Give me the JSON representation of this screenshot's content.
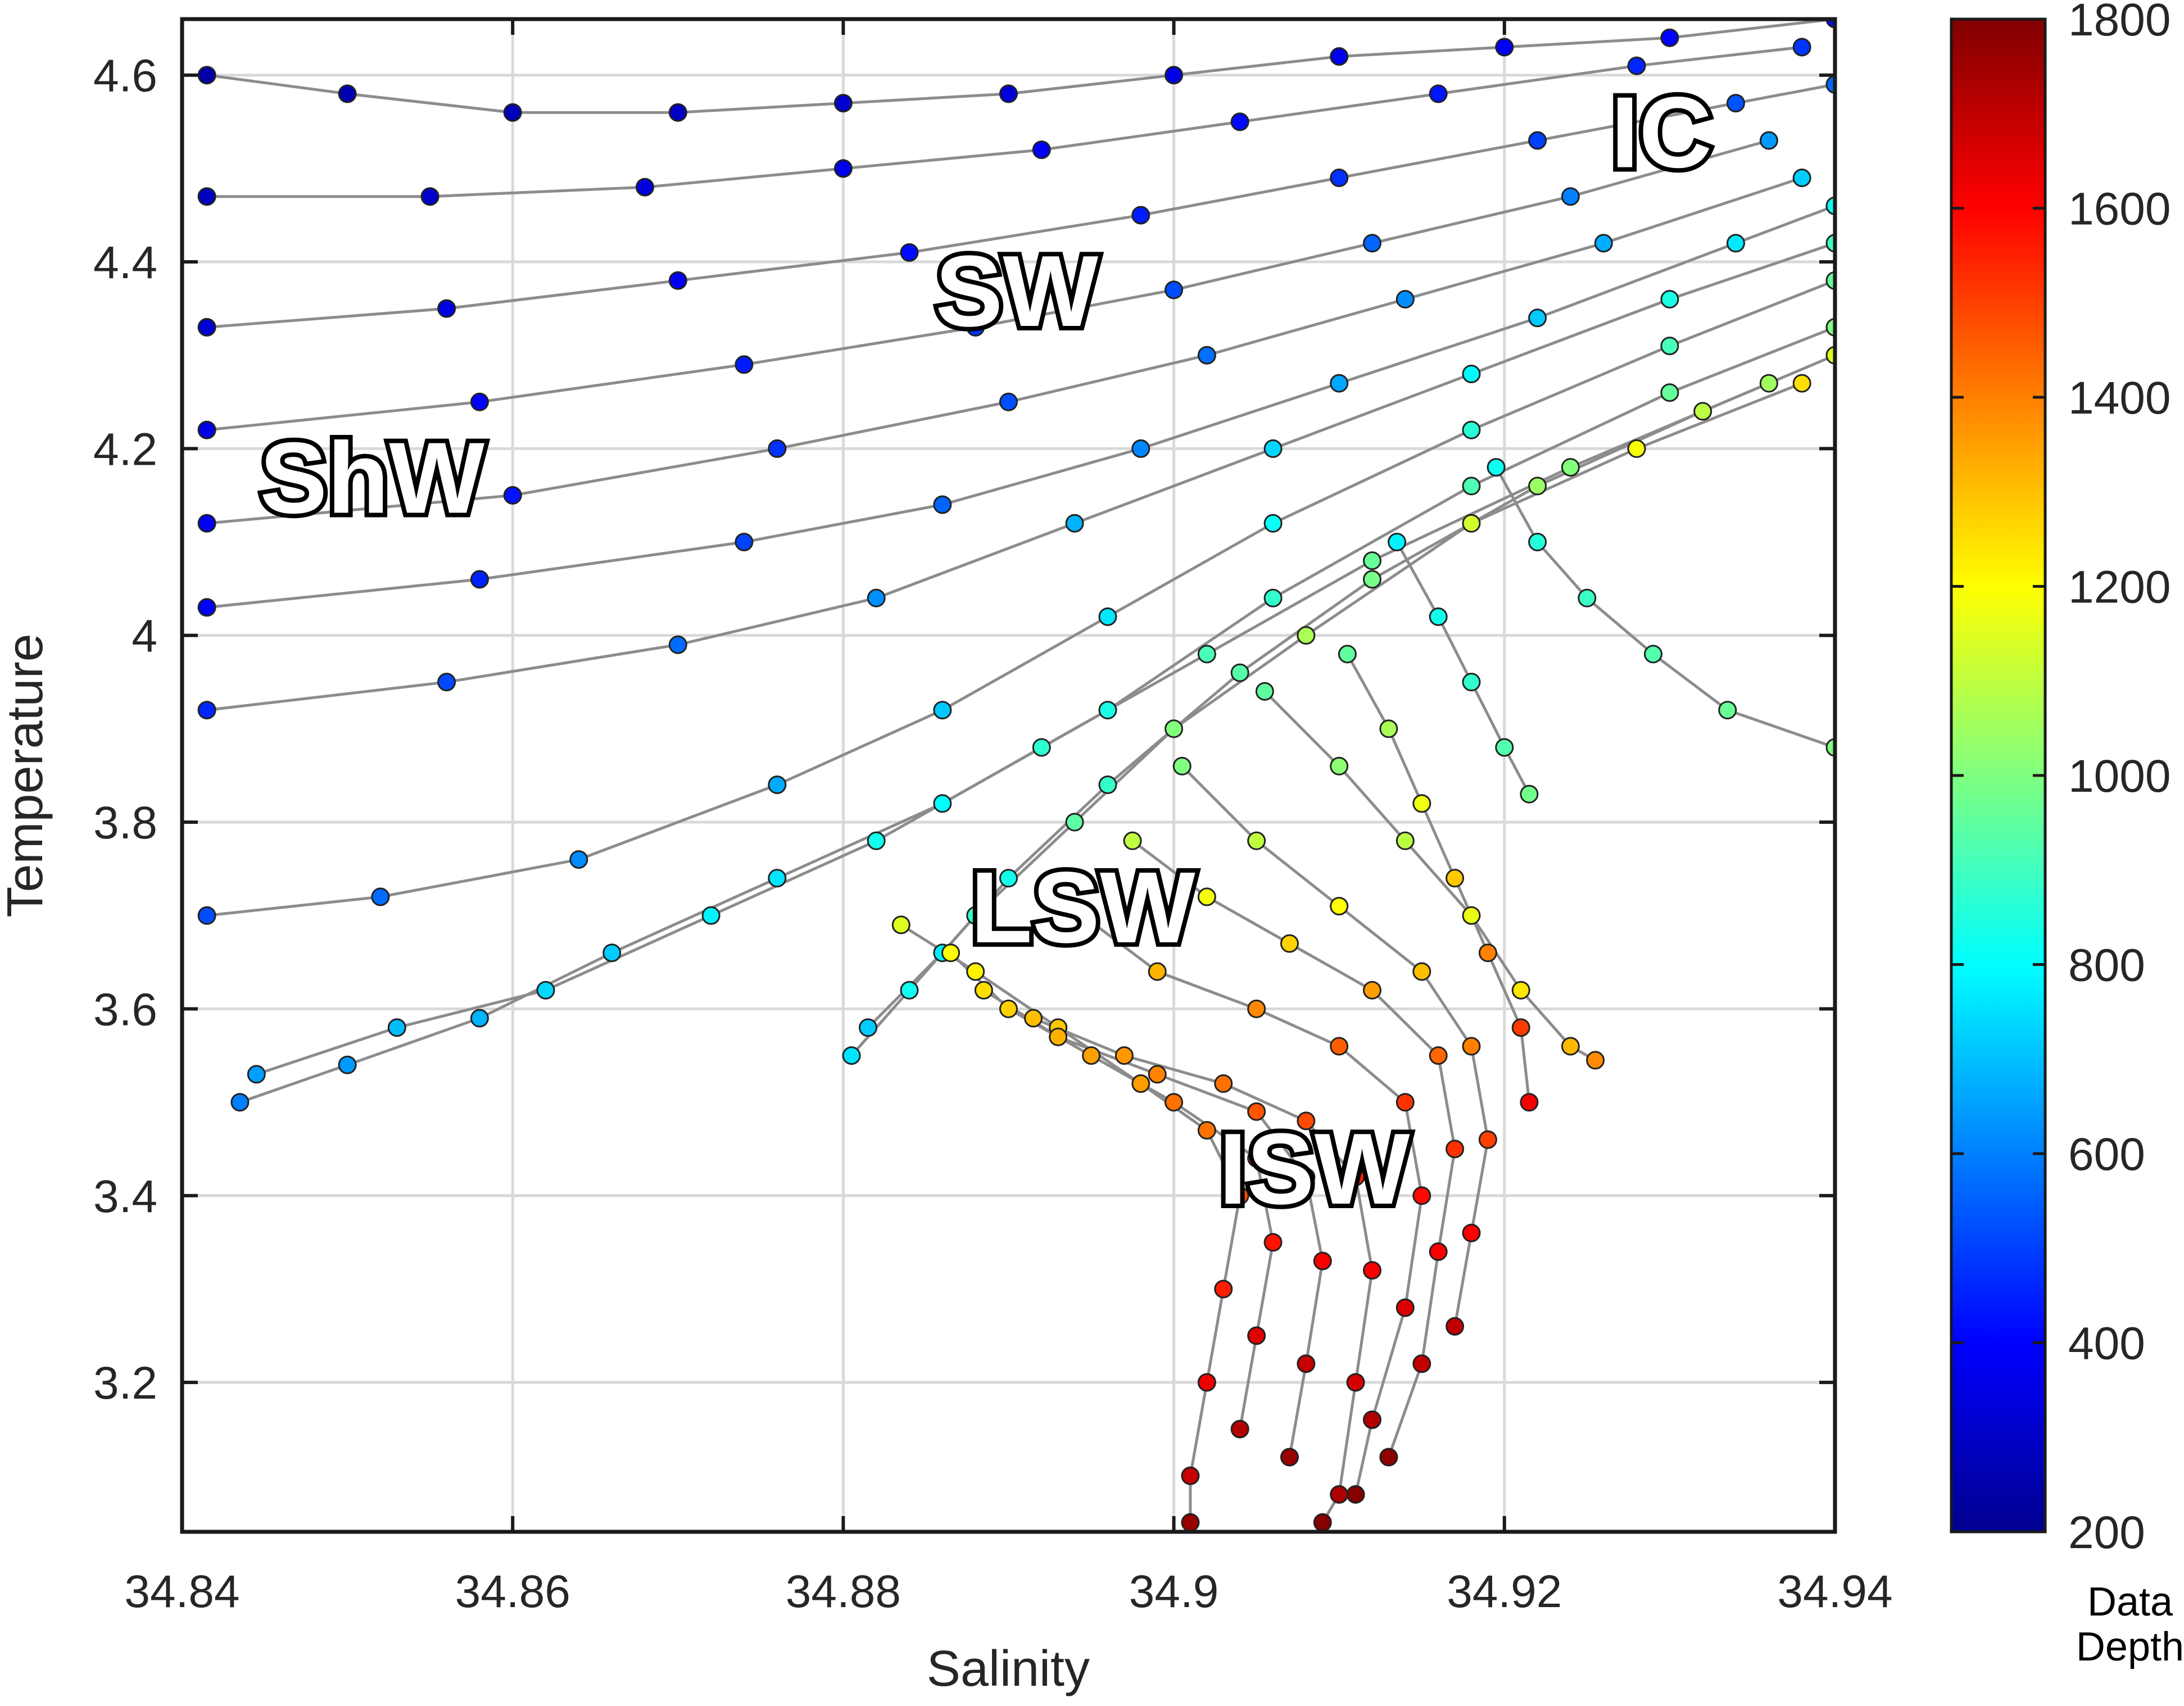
{
  "chart_data": {
    "type": "scatter",
    "xlabel": "Salinity",
    "ylabel": "Temperature",
    "xlim": [
      34.84,
      34.94
    ],
    "ylim": [
      3.04,
      4.66
    ],
    "x_ticks": [
      "34.84",
      "34.86",
      "34.88",
      "34.9",
      "34.92",
      "34.94"
    ],
    "y_ticks": [
      "3.2",
      "3.4",
      "3.6",
      "3.8",
      "4",
      "4.2",
      "4.4",
      "4.6"
    ],
    "grid": true,
    "colorbar": {
      "label_line1": "Data",
      "label_line2": "Depth",
      "range": [
        200,
        1800
      ],
      "ticks": [
        "200",
        "400",
        "600",
        "800",
        "1000",
        "1200",
        "1400",
        "1600",
        "1800"
      ],
      "colormap": "jet"
    },
    "annotations": [
      {
        "text": "IC",
        "x": 34.9295,
        "y": 4.53
      },
      {
        "text": "SW",
        "x": 34.8905,
        "y": 4.36
      },
      {
        "text": "ShW",
        "x": 34.8515,
        "y": 4.16
      },
      {
        "text": "LSW",
        "x": 34.8945,
        "y": 3.7
      },
      {
        "text": "ISW",
        "x": 34.9085,
        "y": 3.42
      }
    ],
    "profile_paths": [
      {
        "points": [
          [
            34.8415,
            4.6
          ],
          [
            34.85,
            4.58
          ],
          [
            34.86,
            4.56
          ],
          [
            34.87,
            4.56
          ],
          [
            34.88,
            4.57
          ],
          [
            34.89,
            4.58
          ],
          [
            34.9,
            4.6
          ],
          [
            34.91,
            4.62
          ],
          [
            34.92,
            4.63
          ],
          [
            34.93,
            4.64
          ],
          [
            34.94,
            4.66
          ]
        ],
        "depth_range": [
          260,
          420
        ]
      },
      {
        "points": [
          [
            34.8415,
            4.47
          ],
          [
            34.855,
            4.47
          ],
          [
            34.868,
            4.48
          ],
          [
            34.88,
            4.5
          ],
          [
            34.892,
            4.52
          ],
          [
            34.904,
            4.55
          ],
          [
            34.916,
            4.58
          ],
          [
            34.928,
            4.61
          ],
          [
            34.938,
            4.63
          ]
        ],
        "depth_range": [
          300,
          480
        ]
      },
      {
        "points": [
          [
            34.8415,
            4.33
          ],
          [
            34.856,
            4.35
          ],
          [
            34.87,
            4.38
          ],
          [
            34.884,
            4.41
          ],
          [
            34.898,
            4.45
          ],
          [
            34.91,
            4.49
          ],
          [
            34.922,
            4.53
          ],
          [
            34.934,
            4.57
          ],
          [
            34.94,
            4.59
          ]
        ],
        "depth_range": [
          330,
          560
        ]
      },
      {
        "points": [
          [
            34.8415,
            4.22
          ],
          [
            34.858,
            4.25
          ],
          [
            34.874,
            4.29
          ],
          [
            34.888,
            4.33
          ],
          [
            34.9,
            4.37
          ],
          [
            34.912,
            4.42
          ],
          [
            34.924,
            4.47
          ],
          [
            34.936,
            4.53
          ]
        ],
        "depth_range": [
          360,
          640
        ]
      },
      {
        "points": [
          [
            34.8415,
            4.12
          ],
          [
            34.86,
            4.15
          ],
          [
            34.876,
            4.2
          ],
          [
            34.89,
            4.25
          ],
          [
            34.902,
            4.3
          ],
          [
            34.914,
            4.36
          ],
          [
            34.926,
            4.42
          ],
          [
            34.938,
            4.49
          ]
        ],
        "depth_range": [
          380,
          720
        ]
      },
      {
        "points": [
          [
            34.8415,
            4.03
          ],
          [
            34.858,
            4.06
          ],
          [
            34.874,
            4.1
          ],
          [
            34.886,
            4.14
          ],
          [
            34.898,
            4.2
          ],
          [
            34.91,
            4.27
          ],
          [
            34.922,
            4.34
          ],
          [
            34.934,
            4.42
          ],
          [
            34.94,
            4.46
          ]
        ],
        "depth_range": [
          400,
          820
        ]
      },
      {
        "points": [
          [
            34.8415,
            3.92
          ],
          [
            34.856,
            3.95
          ],
          [
            34.87,
            3.99
          ],
          [
            34.882,
            4.04
          ],
          [
            34.894,
            4.12
          ],
          [
            34.906,
            4.2
          ],
          [
            34.918,
            4.28
          ],
          [
            34.93,
            4.36
          ],
          [
            34.94,
            4.42
          ]
        ],
        "depth_range": [
          460,
          900
        ]
      },
      {
        "points": [
          [
            34.8415,
            3.7
          ],
          [
            34.852,
            3.72
          ],
          [
            34.864,
            3.76
          ],
          [
            34.876,
            3.84
          ],
          [
            34.886,
            3.92
          ],
          [
            34.896,
            4.02
          ],
          [
            34.906,
            4.12
          ],
          [
            34.918,
            4.22
          ],
          [
            34.93,
            4.31
          ],
          [
            34.94,
            4.38
          ]
        ],
        "depth_range": [
          520,
          960
        ]
      },
      {
        "points": [
          [
            34.8435,
            3.5
          ],
          [
            34.85,
            3.54
          ],
          [
            34.858,
            3.59
          ],
          [
            34.866,
            3.66
          ],
          [
            34.876,
            3.74
          ],
          [
            34.886,
            3.82
          ],
          [
            34.896,
            3.92
          ],
          [
            34.906,
            4.04
          ],
          [
            34.918,
            4.16
          ],
          [
            34.93,
            4.26
          ],
          [
            34.94,
            4.33
          ]
        ],
        "depth_range": [
          600,
          1000
        ]
      },
      {
        "points": [
          [
            34.8445,
            3.53
          ],
          [
            34.853,
            3.58
          ],
          [
            34.862,
            3.62
          ],
          [
            34.872,
            3.7
          ],
          [
            34.882,
            3.78
          ],
          [
            34.892,
            3.88
          ],
          [
            34.902,
            3.98
          ],
          [
            34.912,
            4.08
          ],
          [
            34.924,
            4.18
          ],
          [
            34.936,
            4.27
          ]
        ],
        "depth_range": [
          650,
          1050
        ]
      },
      {
        "points": [
          [
            34.8815,
            3.58
          ],
          [
            34.886,
            3.66
          ],
          [
            34.89,
            3.74
          ],
          [
            34.896,
            3.84
          ],
          [
            34.904,
            3.96
          ],
          [
            34.912,
            4.06
          ],
          [
            34.922,
            4.16
          ],
          [
            34.932,
            4.24
          ],
          [
            34.94,
            4.3
          ]
        ],
        "depth_range": [
          720,
          1150
        ]
      },
      {
        "points": [
          [
            34.8805,
            3.55
          ],
          [
            34.884,
            3.62
          ],
          [
            34.888,
            3.7
          ],
          [
            34.894,
            3.8
          ],
          [
            34.9,
            3.9
          ],
          [
            34.908,
            4.0
          ],
          [
            34.918,
            4.12
          ],
          [
            34.928,
            4.2
          ],
          [
            34.938,
            4.27
          ]
        ],
        "depth_range": [
          760,
          1250
        ]
      },
      {
        "points": [
          [
            34.8835,
            3.69
          ],
          [
            34.888,
            3.64
          ],
          [
            34.893,
            3.58
          ],
          [
            34.898,
            3.52
          ],
          [
            34.902,
            3.47
          ],
          [
            34.904,
            3.4
          ],
          [
            34.903,
            3.3
          ],
          [
            34.902,
            3.2
          ],
          [
            34.901,
            3.1
          ],
          [
            34.901,
            3.05
          ]
        ],
        "depth_range": [
          1150,
          1760
        ]
      },
      {
        "points": [
          [
            34.8865,
            3.66
          ],
          [
            34.89,
            3.6
          ],
          [
            34.895,
            3.55
          ],
          [
            34.9,
            3.5
          ],
          [
            34.905,
            3.44
          ],
          [
            34.906,
            3.35
          ],
          [
            34.905,
            3.25
          ],
          [
            34.904,
            3.15
          ]
        ],
        "depth_range": [
          1200,
          1720
        ]
      },
      {
        "points": [
          [
            34.8885,
            3.62
          ],
          [
            34.893,
            3.57
          ],
          [
            34.899,
            3.53
          ],
          [
            34.905,
            3.49
          ],
          [
            34.908,
            3.42
          ],
          [
            34.909,
            3.33
          ],
          [
            34.908,
            3.22
          ],
          [
            34.907,
            3.12
          ]
        ],
        "depth_range": [
          1250,
          1760
        ]
      },
      {
        "points": [
          [
            34.8915,
            3.59
          ],
          [
            34.897,
            3.55
          ],
          [
            34.903,
            3.52
          ],
          [
            34.908,
            3.48
          ],
          [
            34.911,
            3.42
          ],
          [
            34.912,
            3.32
          ],
          [
            34.911,
            3.2
          ],
          [
            34.91,
            3.08
          ],
          [
            34.909,
            3.05
          ]
        ],
        "depth_range": [
          1300,
          1790
        ]
      },
      {
        "points": [
          [
            34.8945,
            3.7
          ],
          [
            34.899,
            3.64
          ],
          [
            34.905,
            3.6
          ],
          [
            34.91,
            3.56
          ],
          [
            34.914,
            3.5
          ],
          [
            34.915,
            3.4
          ],
          [
            34.914,
            3.28
          ],
          [
            34.912,
            3.16
          ],
          [
            34.911,
            3.08
          ]
        ],
        "depth_range": [
          1250,
          1790
        ]
      },
      {
        "points": [
          [
            34.8975,
            3.78
          ],
          [
            34.902,
            3.72
          ],
          [
            34.907,
            3.67
          ],
          [
            34.912,
            3.62
          ],
          [
            34.916,
            3.55
          ],
          [
            34.917,
            3.45
          ],
          [
            34.916,
            3.34
          ],
          [
            34.915,
            3.22
          ],
          [
            34.913,
            3.12
          ]
        ],
        "depth_range": [
          1100,
          1780
        ]
      },
      {
        "points": [
          [
            34.9005,
            3.86
          ],
          [
            34.905,
            3.78
          ],
          [
            34.91,
            3.71
          ],
          [
            34.915,
            3.64
          ],
          [
            34.918,
            3.56
          ],
          [
            34.919,
            3.46
          ],
          [
            34.918,
            3.36
          ],
          [
            34.917,
            3.26
          ]
        ],
        "depth_range": [
          1000,
          1700
        ]
      },
      {
        "points": [
          [
            34.9055,
            3.94
          ],
          [
            34.91,
            3.86
          ],
          [
            34.914,
            3.78
          ],
          [
            34.918,
            3.7
          ],
          [
            34.921,
            3.62
          ],
          [
            34.924,
            3.56
          ],
          [
            34.9255,
            3.545
          ]
        ],
        "depth_range": [
          950,
          1380
        ]
      },
      {
        "points": [
          [
            34.9105,
            3.98
          ],
          [
            34.913,
            3.9
          ],
          [
            34.915,
            3.82
          ],
          [
            34.917,
            3.74
          ],
          [
            34.919,
            3.66
          ],
          [
            34.921,
            3.58
          ],
          [
            34.9215,
            3.5
          ]
        ],
        "depth_range": [
          950,
          1620
        ]
      },
      {
        "points": [
          [
            34.9135,
            4.1
          ],
          [
            34.916,
            4.02
          ],
          [
            34.918,
            3.95
          ],
          [
            34.92,
            3.88
          ],
          [
            34.9215,
            3.83
          ]
        ],
        "depth_range": [
          780,
          980
        ]
      },
      {
        "points": [
          [
            34.9195,
            4.18
          ],
          [
            34.922,
            4.1
          ],
          [
            34.925,
            4.04
          ],
          [
            34.929,
            3.98
          ],
          [
            34.9335,
            3.92
          ],
          [
            34.94,
            3.88
          ]
        ],
        "depth_range": [
          820,
          1000
        ]
      }
    ]
  }
}
